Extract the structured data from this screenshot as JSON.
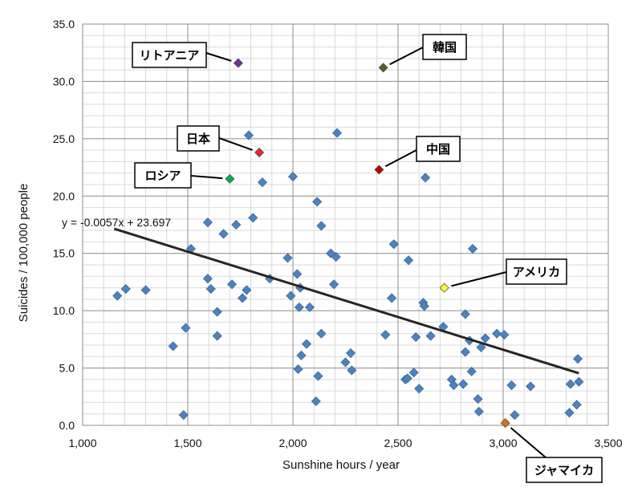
{
  "chart_data": {
    "type": "scatter",
    "title": "",
    "xlabel": "Sunshine hours / year",
    "ylabel": "Suicides / 100,000 people",
    "xlim": [
      1000,
      3500
    ],
    "ylim": [
      0,
      35
    ],
    "x_ticks": [
      1000,
      1500,
      2000,
      2500,
      3000,
      3500
    ],
    "x_tick_labels": [
      "1,000",
      "1,500",
      "2,000",
      "2,500",
      "3,000",
      "3,500"
    ],
    "y_ticks": [
      0,
      5,
      10,
      15,
      20,
      25,
      30,
      35
    ],
    "y_tick_labels": [
      "0.0",
      "5.0",
      "10.0",
      "15.0",
      "20.0",
      "25.0",
      "30.0",
      "35.0"
    ],
    "series_color": "#4f81bd",
    "points": [
      [
        1165,
        11.3
      ],
      [
        1205,
        11.9
      ],
      [
        1300,
        11.8
      ],
      [
        1430,
        6.9
      ],
      [
        1480,
        0.9
      ],
      [
        1490,
        8.5
      ],
      [
        1515,
        15.4
      ],
      [
        1595,
        17.7
      ],
      [
        1595,
        12.8
      ],
      [
        1610,
        11.9
      ],
      [
        1640,
        9.9
      ],
      [
        1640,
        7.8
      ],
      [
        1670,
        16.7
      ],
      [
        1710,
        12.3
      ],
      [
        1730,
        17.5
      ],
      [
        1760,
        11.1
      ],
      [
        1790,
        25.3
      ],
      [
        1780,
        11.8
      ],
      [
        1810,
        18.1
      ],
      [
        1855,
        21.2
      ],
      [
        1890,
        12.8
      ],
      [
        1975,
        14.6
      ],
      [
        1990,
        11.3
      ],
      [
        2000,
        21.7
      ],
      [
        2020,
        13.2
      ],
      [
        2025,
        4.9
      ],
      [
        2030,
        10.3
      ],
      [
        2035,
        12.0
      ],
      [
        2040,
        6.1
      ],
      [
        2065,
        7.1
      ],
      [
        2080,
        10.3
      ],
      [
        2110,
        2.1
      ],
      [
        2115,
        19.5
      ],
      [
        2120,
        4.3
      ],
      [
        2135,
        17.4
      ],
      [
        2135,
        8.0
      ],
      [
        2180,
        15.0
      ],
      [
        2195,
        12.3
      ],
      [
        2205,
        14.7
      ],
      [
        2210,
        25.5
      ],
      [
        2250,
        5.5
      ],
      [
        2275,
        6.3
      ],
      [
        2280,
        4.8
      ],
      [
        2440,
        7.9
      ],
      [
        2470,
        11.1
      ],
      [
        2480,
        15.8
      ],
      [
        2535,
        4.0
      ],
      [
        2545,
        4.1
      ],
      [
        2550,
        14.4
      ],
      [
        2575,
        4.6
      ],
      [
        2585,
        7.7
      ],
      [
        2600,
        3.2
      ],
      [
        2620,
        10.7
      ],
      [
        2625,
        10.4
      ],
      [
        2630,
        21.6
      ],
      [
        2655,
        7.8
      ],
      [
        2715,
        8.6
      ],
      [
        2755,
        4.0
      ],
      [
        2765,
        3.5
      ],
      [
        2810,
        3.6
      ],
      [
        2820,
        9.7
      ],
      [
        2820,
        6.4
      ],
      [
        2840,
        7.4
      ],
      [
        2850,
        4.7
      ],
      [
        2855,
        15.4
      ],
      [
        2880,
        2.3
      ],
      [
        2885,
        1.2
      ],
      [
        2895,
        6.8
      ],
      [
        2915,
        7.6
      ],
      [
        2970,
        8.0
      ],
      [
        3005,
        7.9
      ],
      [
        3040,
        3.5
      ],
      [
        3055,
        0.9
      ],
      [
        3130,
        3.4
      ],
      [
        3315,
        1.1
      ],
      [
        3320,
        3.6
      ],
      [
        3350,
        1.8
      ],
      [
        3355,
        5.8
      ],
      [
        3360,
        3.8
      ]
    ],
    "highlighted": [
      {
        "label": "リトアニア",
        "x": 1740,
        "y": 31.6,
        "color": "#7030a0"
      },
      {
        "label": "韓国",
        "x": 2430,
        "y": 31.2,
        "color": "#4f6228"
      },
      {
        "label": "日本",
        "x": 1840,
        "y": 23.8,
        "color": "#e3262b"
      },
      {
        "label": "中国",
        "x": 2410,
        "y": 22.3,
        "color": "#c00000"
      },
      {
        "label": "ロシア",
        "x": 1700,
        "y": 21.5,
        "color": "#00b050"
      },
      {
        "label": "アメリカ",
        "x": 2720,
        "y": 12.0,
        "color": "#ffff33"
      },
      {
        "label": "ジャマイカ",
        "x": 3010,
        "y": 0.2,
        "color": "#e46c0a"
      }
    ],
    "trendline": {
      "equation": "y = -0.0057x + 23.697",
      "slope": -0.0057,
      "intercept": 23.697,
      "x_range": [
        1150,
        3360
      ],
      "color": "#262626"
    }
  }
}
